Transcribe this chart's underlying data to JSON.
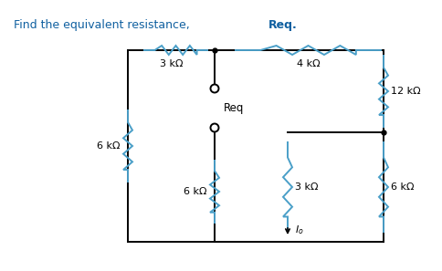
{
  "title_normal": "Find the equivalent resistance, ",
  "title_bold": "Req.",
  "bg_color": "#ffffff",
  "wire_color": "#000000",
  "resistor_color": "#4a9fc8",
  "text_color": "#000000",
  "label_color": "#4a4a4a",
  "fig_width": 4.85,
  "fig_height": 2.97,
  "labels": {
    "R3k_top": "3 kΩ",
    "R4k_top": "4 kΩ",
    "R12k": "12 kΩ",
    "R6k_left": "6 kΩ",
    "R6k_mid": "6 kΩ",
    "R3k_bot": "3 kΩ",
    "R6k_right": "6 kΩ",
    "Req": "Req",
    "Io": "$I_o$"
  }
}
